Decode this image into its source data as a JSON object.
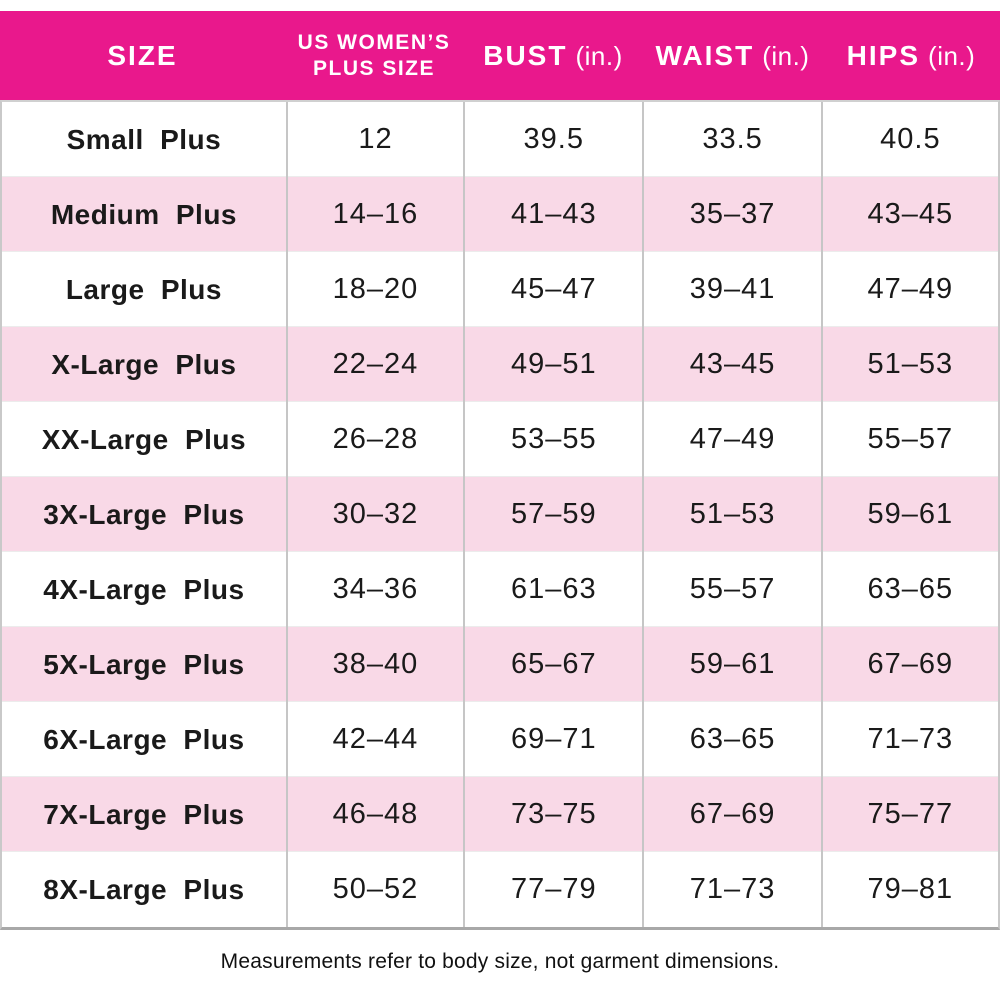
{
  "chart_data": {
    "type": "table",
    "columns": [
      {
        "label": "SIZE"
      },
      {
        "label": "US WOMEN’S PLUS SIZE",
        "line1": "US WOMEN’S",
        "line2": "PLUS SIZE"
      },
      {
        "label": "BUST",
        "unit": "(in.)"
      },
      {
        "label": "WAIST",
        "unit": "(in.)"
      },
      {
        "label": "HIPS",
        "unit": "(in.)"
      }
    ],
    "rows": [
      [
        "Small Plus",
        "12",
        "39.5",
        "33.5",
        "40.5"
      ],
      [
        "Medium Plus",
        "14–16",
        "41–43",
        "35–37",
        "43–45"
      ],
      [
        "Large Plus",
        "18–20",
        "45–47",
        "39–41",
        "47–49"
      ],
      [
        "X-Large Plus",
        "22–24",
        "49–51",
        "43–45",
        "51–53"
      ],
      [
        "XX-Large Plus",
        "26–28",
        "53–55",
        "47–49",
        "55–57"
      ],
      [
        "3X-Large Plus",
        "30–32",
        "57–59",
        "51–53",
        "59–61"
      ],
      [
        "4X-Large Plus",
        "34–36",
        "61–63",
        "55–57",
        "63–65"
      ],
      [
        "5X-Large Plus",
        "38–40",
        "65–67",
        "59–61",
        "67–69"
      ],
      [
        "6X-Large Plus",
        "42–44",
        "69–71",
        "63–65",
        "71–73"
      ],
      [
        "7X-Large Plus",
        "46–48",
        "73–75",
        "67–69",
        "75–77"
      ],
      [
        "8X-Large Plus",
        "50–52",
        "77–79",
        "71–73",
        "79–81"
      ]
    ]
  },
  "footer_note": "Measurements refer to body size, not garment dimensions.",
  "colors": {
    "header_bg": "#E9188C",
    "header_text": "#FFFFFF",
    "row_alt_bg": "#F9D9E7",
    "row_bg": "#FFFFFF",
    "divider": "#C6C6C6",
    "body_text": "#1A1A1A"
  }
}
